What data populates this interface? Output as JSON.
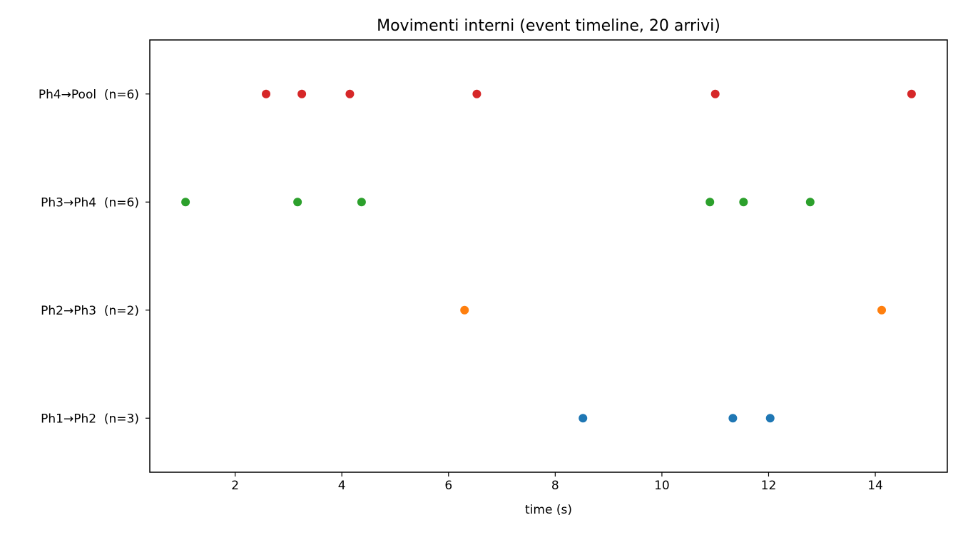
{
  "chart_data": {
    "type": "scatter",
    "title": "Movimenti interni (event timeline, 20 arrivi)",
    "xlabel": "time (s)",
    "ylabel": "",
    "xlim": [
      0.4,
      15.35
    ],
    "xticks": [
      2,
      4,
      6,
      8,
      10,
      12,
      14
    ],
    "grid": false,
    "series": [
      {
        "name": "Ph1→Ph2  (n=3)",
        "color": "#1f77b4",
        "x": [
          8.52,
          11.33,
          12.03
        ]
      },
      {
        "name": "Ph2→Ph3  (n=2)",
        "color": "#ff7f0e",
        "x": [
          6.3,
          14.12
        ]
      },
      {
        "name": "Ph3→Ph4  (n=6)",
        "color": "#2ca02c",
        "x": [
          1.07,
          3.17,
          4.37,
          10.9,
          11.53,
          12.78
        ]
      },
      {
        "name": "Ph4→Pool  (n=6)",
        "color": "#d62728",
        "x": [
          2.58,
          3.25,
          4.15,
          6.53,
          11.0,
          14.68
        ]
      }
    ]
  }
}
